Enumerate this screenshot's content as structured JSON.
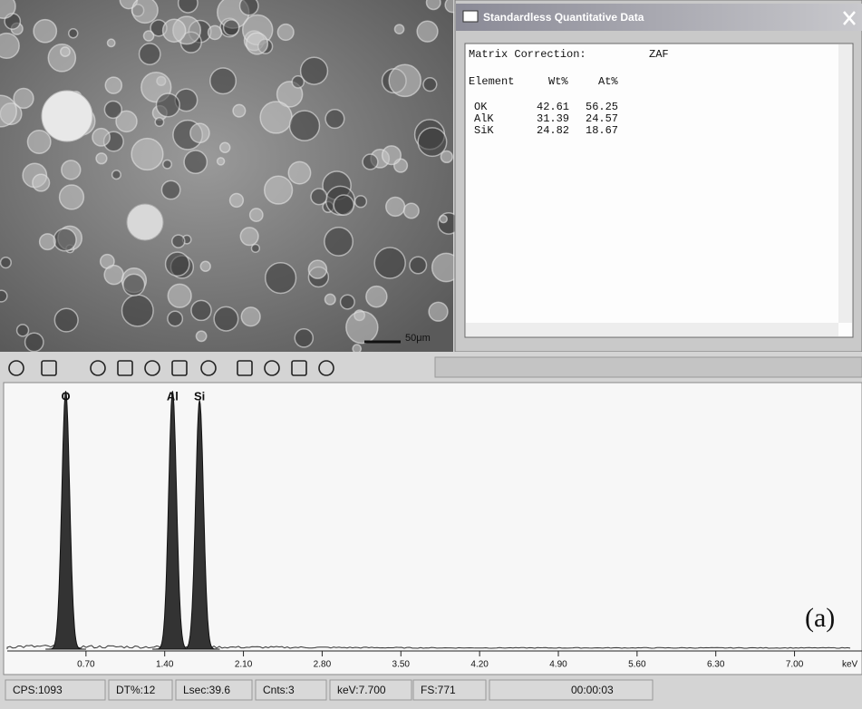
{
  "sem_image": {
    "scale_bar": "50μm"
  },
  "window": {
    "title": "Standardless Quantitative Data",
    "matrix_label": "Matrix Correction:",
    "matrix_value": "ZAF",
    "columns": [
      "Element",
      "Wt%",
      "At%"
    ],
    "rows": [
      [
        "OK",
        "42.61",
        "56.25"
      ],
      [
        "AlK",
        "31.39",
        "24.57"
      ],
      [
        "SiK",
        "24.82",
        "18.67"
      ]
    ]
  },
  "spectrum": {
    "type": "spectrum",
    "xlim": [
      0,
      7.6
    ],
    "xticks": [
      {
        "value": 0.7,
        "label": "0.70"
      },
      {
        "value": 1.4,
        "label": "1.40"
      },
      {
        "value": 2.1,
        "label": "2.10"
      },
      {
        "value": 2.8,
        "label": "2.80"
      },
      {
        "value": 3.5,
        "label": "3.50"
      },
      {
        "value": 4.2,
        "label": "4.20"
      },
      {
        "value": 4.9,
        "label": "4.90"
      },
      {
        "value": 5.6,
        "label": "5.60"
      },
      {
        "value": 6.3,
        "label": "6.30"
      },
      {
        "value": 7.0,
        "label": "7.00"
      }
    ],
    "unit": "keV",
    "ylim": [
      0,
      771
    ],
    "peaks": [
      {
        "label": "O",
        "kev": 0.52,
        "height": 757
      },
      {
        "label": "Al",
        "kev": 1.47,
        "height": 757
      },
      {
        "label": "Si",
        "kev": 1.71,
        "height": 730
      }
    ],
    "annotation": "(a)"
  },
  "status": [
    "CPS:1093",
    "DT%:12",
    "Lsec:39.6",
    "Cnts:3",
    "keV:7.700",
    "FS:771",
    "00:00:03"
  ]
}
